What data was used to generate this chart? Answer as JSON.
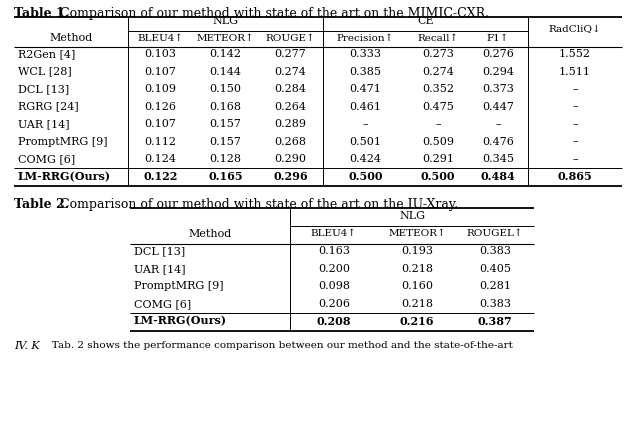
{
  "table1_title_bold": "Table 1.",
  "table1_title_rest": " Comparison of our method with state of the art on the MIMIC-CXR.",
  "table2_title_bold": "Table 2.",
  "table2_title_rest": " Comparison of our method with state of the art on the IU-Xray.",
  "table1_nlg_header": "NLG",
  "table1_ce_header": "CE",
  "table1_radcliq_header": "RadCliQ↓",
  "table1_col_headers": [
    "Method",
    "BLEU4↑",
    "METEOR↑",
    "ROUGE↑",
    "Precision↑",
    "Recall↑",
    "F1↑",
    "RadCliQ↓"
  ],
  "table1_rows": [
    [
      "R2Gen [4]",
      "0.103",
      "0.142",
      "0.277",
      "0.333",
      "0.273",
      "0.276",
      "1.552"
    ],
    [
      "WCL [28]",
      "0.107",
      "0.144",
      "0.274",
      "0.385",
      "0.274",
      "0.294",
      "1.511"
    ],
    [
      "DCL [13]",
      "0.109",
      "0.150",
      "0.284",
      "0.471",
      "0.352",
      "0.373",
      "–"
    ],
    [
      "RGRG [24]",
      "0.126",
      "0.168",
      "0.264",
      "0.461",
      "0.475",
      "0.447",
      "–"
    ],
    [
      "UAR [14]",
      "0.107",
      "0.157",
      "0.289",
      "–",
      "–",
      "–",
      "–"
    ],
    [
      "PromptMRG [9]",
      "0.112",
      "0.157",
      "0.268",
      "0.501",
      "0.509",
      "0.476",
      "–"
    ],
    [
      "COMG [6]",
      "0.124",
      "0.128",
      "0.290",
      "0.424",
      "0.291",
      "0.345",
      "–"
    ],
    [
      "LM-RRG(Ours)",
      "0.122",
      "0.165",
      "0.296",
      "0.500",
      "0.500",
      "0.484",
      "0.865"
    ]
  ],
  "table1_bold_row": 7,
  "table2_nlg_header": "NLG",
  "table2_col_headers": [
    "Method",
    "BLEU4↑",
    "METEOR↑",
    "ROUGEL↑"
  ],
  "table2_rows": [
    [
      "DCL [13]",
      "0.163",
      "0.193",
      "0.383"
    ],
    [
      "UAR [14]",
      "0.200",
      "0.218",
      "0.405"
    ],
    [
      "PromptMRG [9]",
      "0.098",
      "0.160",
      "0.281"
    ],
    [
      "COMG [6]",
      "0.206",
      "0.218",
      "0.383"
    ],
    [
      "LM-RRG(Ours)",
      "0.208",
      "0.216",
      "0.387"
    ]
  ],
  "table2_bold_row": 4,
  "bottom_text_italic": "IV. K",
  "bottom_text_normal": "   Tab. 2 shows the performance comparison between our method and the state-of-the-art",
  "bg_color": "#ffffff",
  "text_color": "#000000",
  "fs": 8.0,
  "title_fs": 9.0
}
